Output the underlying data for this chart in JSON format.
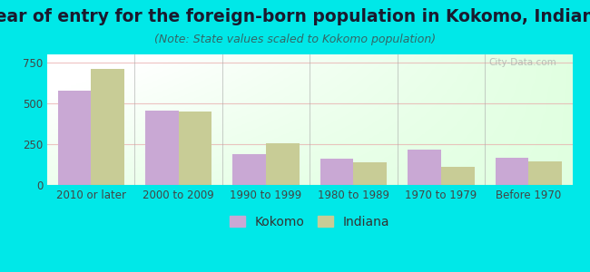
{
  "title": "Year of entry for the foreign-born population in Kokomo, Indiana",
  "subtitle": "(Note: State values scaled to Kokomo population)",
  "categories": [
    "2010 or later",
    "2000 to 2009",
    "1990 to 1999",
    "1980 to 1989",
    "1970 to 1979",
    "Before 1970"
  ],
  "kokomo_values": [
    580,
    455,
    190,
    160,
    215,
    165
  ],
  "indiana_values": [
    710,
    450,
    255,
    140,
    110,
    145
  ],
  "kokomo_color": "#c9a8d4",
  "indiana_color": "#c8cc96",
  "background_color": "#00e8e8",
  "ylim": [
    0,
    800
  ],
  "yticks": [
    0,
    250,
    500,
    750
  ],
  "bar_width": 0.38,
  "title_fontsize": 13.5,
  "subtitle_fontsize": 9,
  "legend_fontsize": 10,
  "tick_fontsize": 8.5,
  "title_color": "#1a1a2e",
  "subtitle_color": "#336666",
  "tick_color": "#444444",
  "watermark_text": "City-Data.com",
  "grid_color": "#ddaaaa",
  "divider_color": "#aaaaaa"
}
